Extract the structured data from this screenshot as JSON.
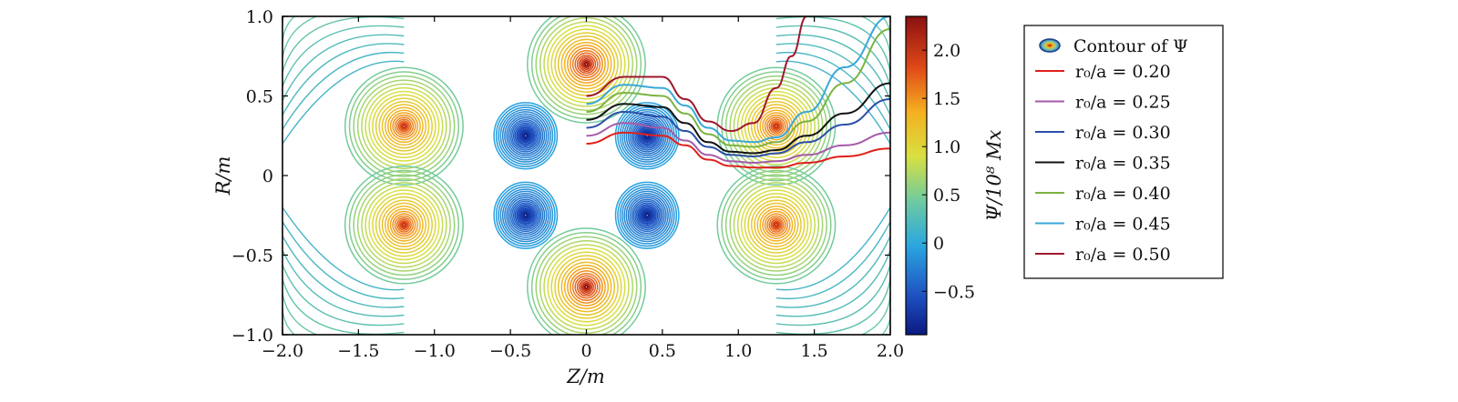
{
  "chart_data": {
    "type": "contour",
    "xlabel": "Z/m",
    "ylabel": "R/m",
    "xlim": [
      -2.0,
      2.0
    ],
    "ylim": [
      -1.0,
      1.0
    ],
    "x_ticks": [
      "−2.0",
      "−1.5",
      "−1.0",
      "−0.5",
      "0",
      "0.5",
      "1.0",
      "1.5",
      "2.0"
    ],
    "x_tick_values": [
      -2.0,
      -1.5,
      -1.0,
      -0.5,
      0,
      0.5,
      1.0,
      1.5,
      2.0
    ],
    "y_ticks": [
      "1.0",
      "0.5",
      "0",
      "−0.5",
      "−1.0"
    ],
    "y_tick_values": [
      1.0,
      0.5,
      0,
      -0.5,
      -1.0
    ],
    "grid": false,
    "colorbar": {
      "label": "Ψ/10⁸ Mx",
      "range": [
        -0.95,
        2.35
      ],
      "ticks": [
        "2.0",
        "1.5",
        "1.0",
        "0.5",
        "0",
        "−0.5"
      ],
      "tick_values": [
        2.0,
        1.5,
        1.0,
        0.5,
        0,
        -0.5
      ],
      "colormap": "jet"
    },
    "sources": [
      {
        "z": 0.0,
        "r": 0.7,
        "psi": 2.3
      },
      {
        "z": 0.0,
        "r": -0.7,
        "psi": 2.3
      },
      {
        "z": -1.2,
        "r": 0.31,
        "psi": 2.0
      },
      {
        "z": 1.25,
        "r": 0.31,
        "psi": 2.0
      },
      {
        "z": -1.2,
        "r": -0.31,
        "psi": 2.0
      },
      {
        "z": 1.25,
        "r": -0.31,
        "psi": 2.0
      },
      {
        "z": -0.4,
        "r": 0.25,
        "psi": -0.9
      },
      {
        "z": 0.4,
        "r": 0.25,
        "psi": -0.9
      },
      {
        "z": -0.4,
        "r": -0.25,
        "psi": -0.9
      },
      {
        "z": 0.4,
        "r": -0.25,
        "psi": -0.9
      }
    ],
    "legend": {
      "placement": "right",
      "contour_entry": "Contour of Ψ",
      "entries": [
        {
          "label": "r₀/a = 0.20",
          "color": "#e0201b"
        },
        {
          "label": "r₀/a = 0.25",
          "color": "#a65aa8"
        },
        {
          "label": "r₀/a = 0.30",
          "color": "#2a4fa8"
        },
        {
          "label": "r₀/a = 0.35",
          "color": "#111111"
        },
        {
          "label": "r₀/a = 0.40",
          "color": "#7cb342"
        },
        {
          "label": "r₀/a = 0.45",
          "color": "#3aa8d8"
        },
        {
          "label": "r₀/a = 0.50",
          "color": "#a0172c"
        }
      ]
    },
    "series": [
      {
        "color": "#e0201b",
        "z": [
          0.0,
          0.25,
          0.5,
          0.65,
          0.8,
          0.95,
          1.1,
          1.25,
          1.45,
          1.7,
          2.0
        ],
        "r": [
          0.2,
          0.27,
          0.25,
          0.19,
          0.1,
          0.06,
          0.05,
          0.05,
          0.08,
          0.12,
          0.17
        ]
      },
      {
        "color": "#a65aa8",
        "z": [
          0.0,
          0.25,
          0.5,
          0.65,
          0.8,
          0.95,
          1.1,
          1.25,
          1.45,
          1.7,
          2.0
        ],
        "r": [
          0.25,
          0.33,
          0.3,
          0.22,
          0.13,
          0.09,
          0.08,
          0.09,
          0.13,
          0.19,
          0.27
        ]
      },
      {
        "color": "#2a4fa8",
        "z": [
          0.0,
          0.25,
          0.5,
          0.65,
          0.8,
          0.95,
          1.1,
          1.25,
          1.45,
          1.7,
          2.0
        ],
        "r": [
          0.3,
          0.4,
          0.37,
          0.28,
          0.18,
          0.13,
          0.12,
          0.14,
          0.21,
          0.32,
          0.48
        ]
      },
      {
        "color": "#111111",
        "z": [
          0.0,
          0.25,
          0.5,
          0.65,
          0.8,
          0.95,
          1.1,
          1.25,
          1.45,
          1.7,
          2.0
        ],
        "r": [
          0.35,
          0.45,
          0.43,
          0.33,
          0.21,
          0.15,
          0.14,
          0.16,
          0.25,
          0.39,
          0.58
        ]
      },
      {
        "color": "#7cb342",
        "z": [
          0.0,
          0.25,
          0.5,
          0.65,
          0.8,
          0.95,
          1.1,
          1.25,
          1.45,
          1.7,
          2.0
        ],
        "r": [
          0.4,
          0.52,
          0.5,
          0.39,
          0.26,
          0.19,
          0.18,
          0.21,
          0.34,
          0.58,
          0.92
        ]
      },
      {
        "color": "#3aa8d8",
        "z": [
          0.0,
          0.25,
          0.5,
          0.65,
          0.8,
          0.95,
          1.1,
          1.25,
          1.45,
          1.7,
          2.0
        ],
        "r": [
          0.45,
          0.57,
          0.55,
          0.44,
          0.3,
          0.22,
          0.21,
          0.24,
          0.4,
          0.68,
          1.0
        ]
      },
      {
        "color": "#a0172c",
        "z": [
          0.0,
          0.25,
          0.5,
          0.65,
          0.8,
          0.95,
          1.1,
          1.25,
          1.35,
          1.45
        ],
        "r": [
          0.5,
          0.62,
          0.62,
          0.48,
          0.34,
          0.28,
          0.33,
          0.55,
          0.75,
          1.0
        ]
      }
    ]
  }
}
